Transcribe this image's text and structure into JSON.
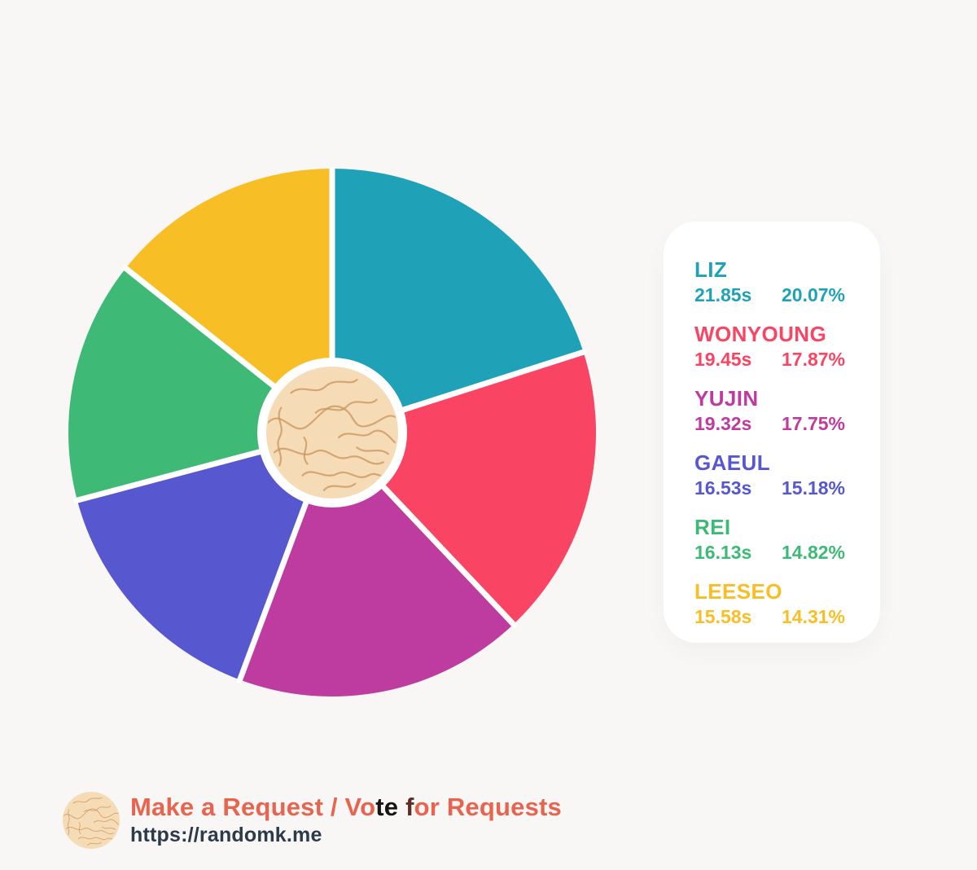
{
  "colors": {
    "background": "#F8F7F6",
    "panel": "#FFFFFF",
    "separator": "#FFFFFF",
    "hub_ring": "#FFFFFF",
    "hub_fill": "#F6DCB6",
    "hub_line": "#C9945C",
    "tagline": "#E8644F",
    "url": "#2C3A49"
  },
  "chart_data": {
    "type": "pie",
    "title": "",
    "legend_position": "right",
    "start_angle_deg": 0,
    "direction": "clockwise",
    "center_decor": "wheel-hub",
    "slices": [
      {
        "label": "LIZ",
        "seconds": "21.85s",
        "percent": "20.07%",
        "value": 20.07,
        "color": "#1FA2B8"
      },
      {
        "label": "WONYOUNG",
        "seconds": "19.45s",
        "percent": "17.87%",
        "value": 17.87,
        "color": "#F94464"
      },
      {
        "label": "YUJIN",
        "seconds": "19.32s",
        "percent": "17.75%",
        "value": 17.75,
        "color": "#BE3BA0"
      },
      {
        "label": "GAEUL",
        "seconds": "16.53s",
        "percent": "15.18%",
        "value": 15.18,
        "color": "#5757CF"
      },
      {
        "label": "REI",
        "seconds": "16.13s",
        "percent": "14.82%",
        "value": 14.82,
        "color": "#3FB976"
      },
      {
        "label": "LEESEO",
        "seconds": "15.58s",
        "percent": "14.31%",
        "value": 14.31,
        "color": "#F8BE25"
      }
    ]
  },
  "footer": {
    "title_parts": [
      {
        "text": "Make a Request / Vo",
        "color": "#E8644F"
      },
      {
        "text": "te",
        "color": "#151515"
      },
      {
        "text": " ",
        "color": "#E8644F"
      },
      {
        "text": "f",
        "color": "#5F2D26"
      },
      {
        "text": "or Requests",
        "color": "#E8644F"
      }
    ],
    "url": "https://randomk.me"
  }
}
